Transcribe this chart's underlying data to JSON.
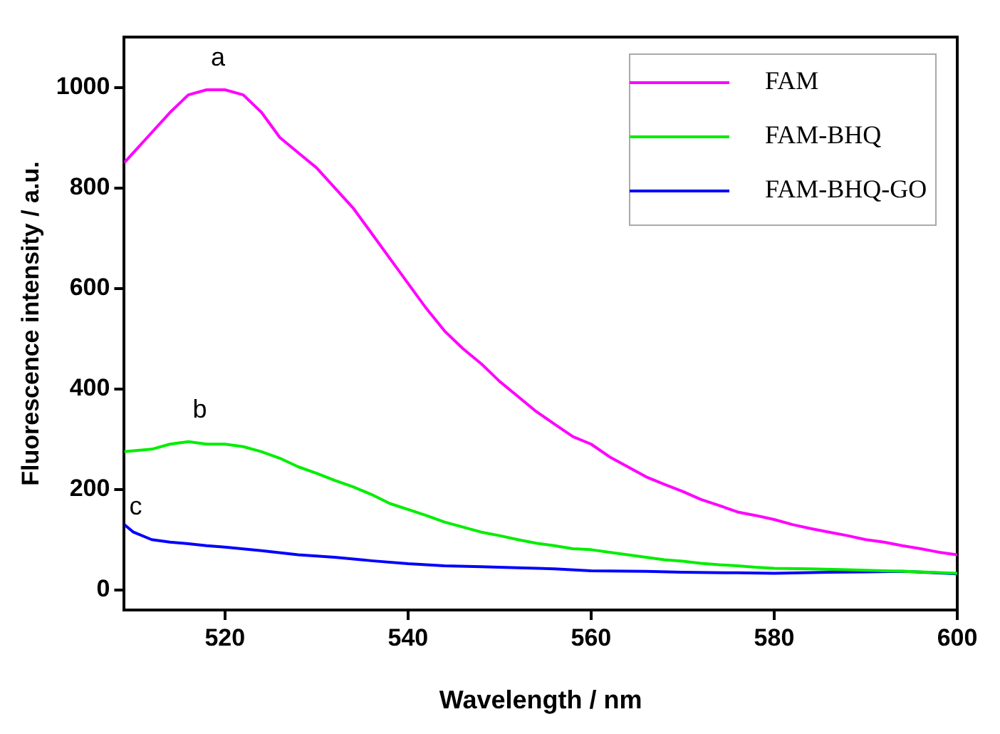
{
  "chart_data": {
    "type": "line",
    "xlabel": "Wavelength / nm",
    "ylabel": "Fluorescence intensity / a.u.",
    "xlim": [
      509,
      600
    ],
    "xticks": [
      520,
      540,
      560,
      580,
      600
    ],
    "ylim": [
      -40,
      1100
    ],
    "yticks": [
      0,
      200,
      400,
      600,
      800,
      1000
    ],
    "grid": false,
    "legend": "top right",
    "marker": "none",
    "line_style": "solid",
    "annotations": [
      "a",
      "b",
      "c"
    ],
    "series": [
      {
        "name": "FAM",
        "color": "#ff00ff",
        "x": [
          509,
          512,
          514,
          516,
          518,
          520,
          522,
          524,
          526,
          528,
          530,
          532,
          534,
          536,
          538,
          540,
          542,
          544,
          546,
          548,
          550,
          552,
          554,
          556,
          558,
          560,
          562,
          564,
          566,
          568,
          570,
          572,
          574,
          576,
          578,
          580,
          582,
          584,
          586,
          588,
          590,
          592,
          594,
          596,
          598,
          600
        ],
        "values": [
          850,
          910,
          950,
          985,
          995,
          995,
          985,
          950,
          900,
          870,
          840,
          800,
          760,
          710,
          660,
          610,
          560,
          515,
          480,
          450,
          415,
          385,
          355,
          330,
          305,
          290,
          265,
          245,
          225,
          210,
          196,
          180,
          168,
          155,
          148,
          140,
          130,
          122,
          115,
          108,
          100,
          95,
          88,
          82,
          75,
          70
        ]
      },
      {
        "name": "FAM-BHQ",
        "color": "#00ee00",
        "x": [
          509,
          512,
          514,
          516,
          518,
          520,
          522,
          524,
          526,
          528,
          530,
          532,
          534,
          536,
          538,
          540,
          542,
          544,
          546,
          548,
          550,
          552,
          554,
          556,
          558,
          560,
          562,
          564,
          566,
          568,
          570,
          572,
          574,
          576,
          578,
          580,
          584,
          588,
          592,
          596,
          600
        ],
        "values": [
          275,
          280,
          290,
          295,
          290,
          290,
          285,
          275,
          262,
          245,
          232,
          218,
          205,
          190,
          172,
          160,
          148,
          135,
          125,
          115,
          108,
          100,
          93,
          88,
          82,
          80,
          75,
          70,
          65,
          60,
          57,
          53,
          50,
          48,
          45,
          43,
          42,
          40,
          38,
          36,
          33
        ]
      },
      {
        "name": "FAM-BHQ-GO",
        "color": "#0000ff",
        "x": [
          509,
          510,
          512,
          514,
          516,
          518,
          520,
          524,
          528,
          532,
          536,
          540,
          544,
          548,
          552,
          556,
          560,
          566,
          570,
          576,
          580,
          586,
          590,
          594,
          600
        ],
        "values": [
          130,
          115,
          100,
          95,
          92,
          88,
          85,
          78,
          70,
          65,
          58,
          52,
          48,
          46,
          44,
          42,
          38,
          37,
          35,
          34,
          33,
          35,
          36,
          37,
          32
        ]
      }
    ]
  }
}
